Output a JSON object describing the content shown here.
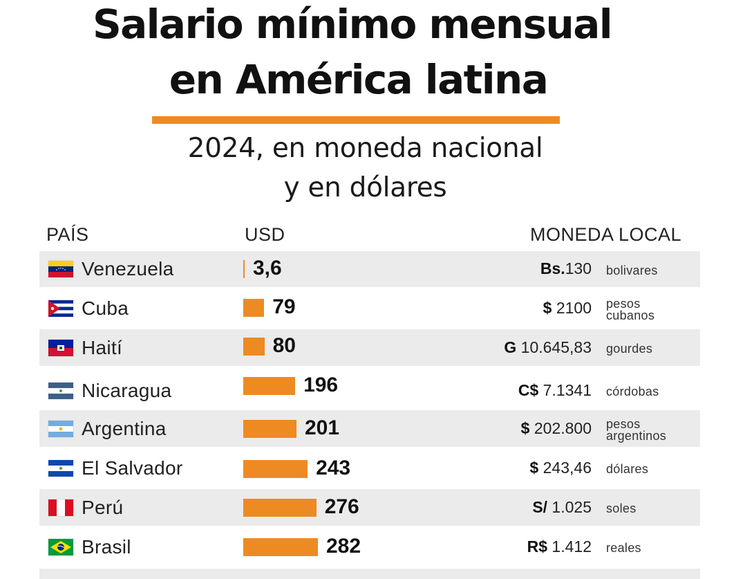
{
  "header": {
    "title_line1": "Salario mínimo mensual",
    "title_line2": "en América latina",
    "subtitle_line1": "2024, en moneda nacional",
    "subtitle_line2": "y en dólares"
  },
  "columns": {
    "country": "PAÍS",
    "usd": "USD",
    "local": "MONEDA LOCAL"
  },
  "colors": {
    "bar": "#ee8a22",
    "rule": "#ee8a22",
    "row_shade": "#ebebeb"
  },
  "chart_data": {
    "type": "bar",
    "orientation": "horizontal",
    "unit": "USD",
    "categories": [
      "Venezuela",
      "Cuba",
      "Haití",
      "Nicaragua",
      "Argentina",
      "El Salvador",
      "Perú",
      "Brasil"
    ],
    "values": [
      3.6,
      79,
      80,
      196,
      201,
      243,
      276,
      282
    ],
    "value_labels": [
      "3,6",
      "79",
      "80",
      "196",
      "201",
      "243",
      "276",
      "282"
    ],
    "rows": [
      {
        "country": "Venezuela",
        "flag": "venezuela-flag",
        "usd": "3,6",
        "value": 3.6,
        "currency_symbol": "Bs.",
        "local_amount": "130",
        "currency_name": [
          "bolivares"
        ]
      },
      {
        "country": "Cuba",
        "flag": "cuba-flag",
        "usd": "79",
        "value": 79,
        "currency_symbol": "$",
        "local_amount": " 2100",
        "currency_name": [
          "pesos",
          "cubanos"
        ]
      },
      {
        "country": "Haití",
        "flag": "haiti-flag",
        "usd": "80",
        "value": 80,
        "currency_symbol": "G",
        "local_amount": " 10.645,83",
        "currency_name": [
          "gourdes"
        ]
      },
      {
        "country": "Nicaragua",
        "flag": "nicaragua-flag",
        "usd": "196",
        "value": 196,
        "currency_symbol": "C$",
        "local_amount": " 7.1341",
        "currency_name": [
          "córdobas"
        ]
      },
      {
        "country": "Argentina",
        "flag": "argentina-flag",
        "usd": "201",
        "value": 201,
        "currency_symbol": "$",
        "local_amount": " 202.800",
        "currency_name": [
          "pesos",
          "argentinos"
        ]
      },
      {
        "country": "El Salvador",
        "flag": "el-salvador-flag",
        "usd": "243",
        "value": 243,
        "currency_symbol": "$",
        "local_amount": " 243,46",
        "currency_name": [
          "dólares"
        ]
      },
      {
        "country": "Perú",
        "flag": "peru-flag",
        "usd": "276",
        "value": 276,
        "currency_symbol": "S/",
        "local_amount": " 1.025",
        "currency_name": [
          "soles"
        ]
      },
      {
        "country": "Brasil",
        "flag": "brazil-flag",
        "usd": "282",
        "value": 282,
        "currency_symbol": "R$",
        "local_amount": " 1.412",
        "currency_name": [
          "reales"
        ]
      }
    ]
  }
}
